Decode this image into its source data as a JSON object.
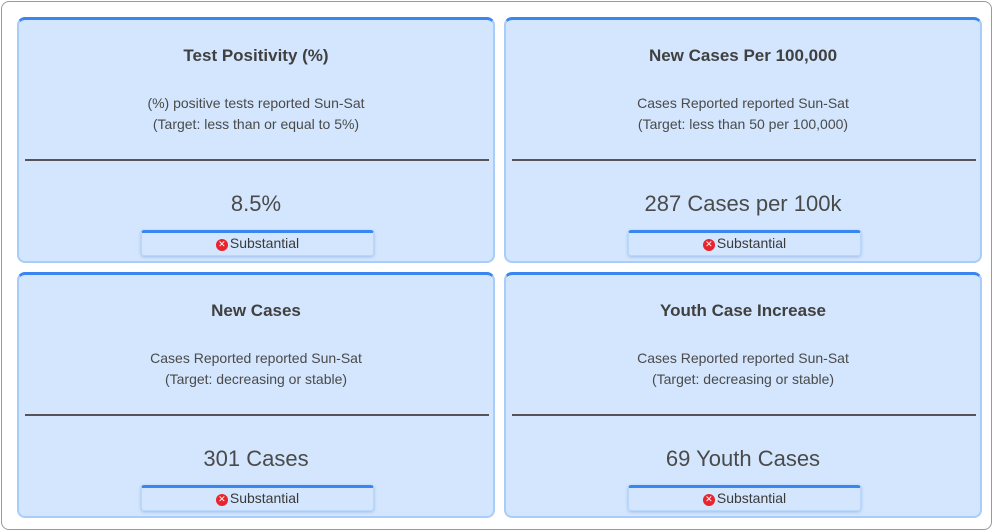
{
  "cards": [
    {
      "title": "Test Positivity (%)",
      "desc_line1": "(%) positive tests reported Sun-Sat",
      "desc_line2": "(Target: less than or equal to 5%)",
      "value": "8.5%",
      "status": "Substantial",
      "status_icon": "error-x-icon"
    },
    {
      "title": "New Cases Per 100,000",
      "desc_line1": "Cases Reported reported Sun-Sat",
      "desc_line2": "(Target: less than 50 per 100,000)",
      "value": "287 Cases per 100k",
      "status": "Substantial",
      "status_icon": "error-x-icon"
    },
    {
      "title": "New Cases",
      "desc_line1": "Cases Reported reported Sun-Sat",
      "desc_line2": "(Target: decreasing or stable)",
      "value": "301 Cases",
      "status": "Substantial",
      "status_icon": "error-x-icon"
    },
    {
      "title": "Youth Case Increase",
      "desc_line1": "Cases Reported reported Sun-Sat",
      "desc_line2": "(Target: decreasing or stable)",
      "value": "69 Youth Cases",
      "status": "Substantial",
      "status_icon": "error-x-icon"
    }
  ],
  "colors": {
    "card_bg": "#d3e6fd",
    "accent": "#3a86f0",
    "status_red": "#e8242c"
  }
}
